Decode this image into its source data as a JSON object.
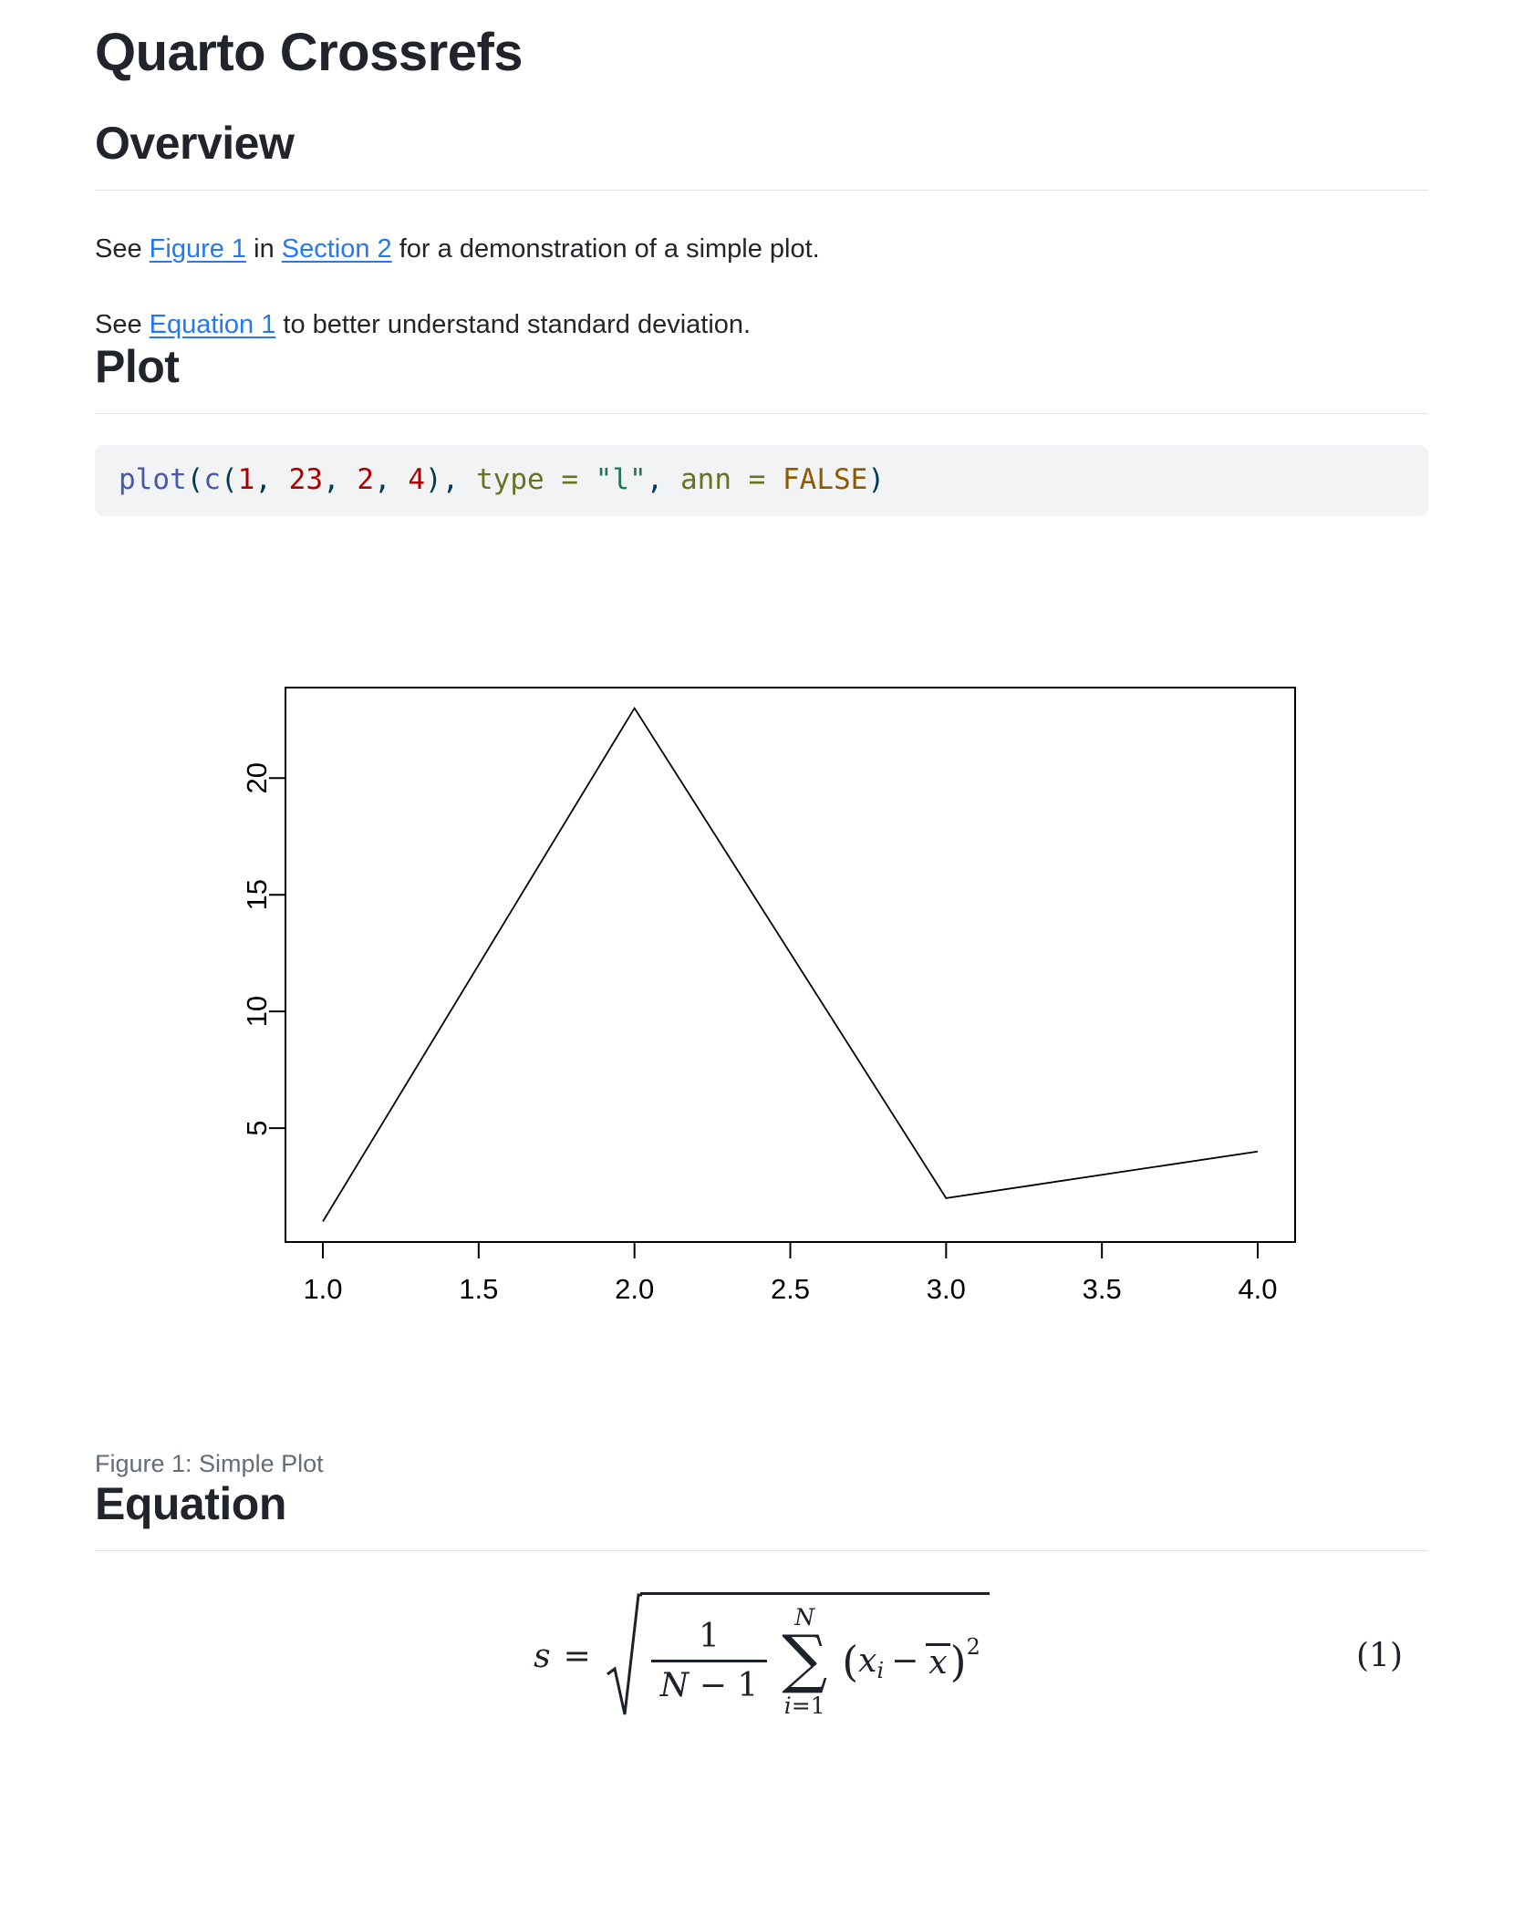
{
  "page": {
    "title": "Quarto Crossrefs"
  },
  "colors": {
    "link": "#2379f0",
    "heading": "#21252b",
    "body_text": "#22262b",
    "rule": "#dee2e6",
    "code_background": "#f1f3f5",
    "caption": "#646c76",
    "plot_line": "#000000",
    "code_function": "#4758AB",
    "code_number": "#AD0000",
    "code_attribute": "#657422",
    "code_string": "#20794D",
    "code_constant": "#8f5902",
    "code_punct": "#003B4F"
  },
  "overview": {
    "heading": "Overview",
    "p1_parts": [
      {
        "text": "See "
      },
      {
        "text": "Figure 1",
        "link": true
      },
      {
        "text": " in "
      },
      {
        "text": "Section 2",
        "link": true
      },
      {
        "text": " for a demonstration of a simple plot."
      }
    ],
    "p2_parts": [
      {
        "text": "See "
      },
      {
        "text": "Equation 1",
        "link": true
      },
      {
        "text": " to better understand standard deviation."
      }
    ]
  },
  "plot_section": {
    "heading": "Plot",
    "code_tokens": [
      {
        "t": "plot",
        "c": "fu"
      },
      {
        "t": "(",
        "c": "pu"
      },
      {
        "t": "c",
        "c": "fu"
      },
      {
        "t": "(",
        "c": "pu"
      },
      {
        "t": "1",
        "c": "dv"
      },
      {
        "t": ", ",
        "c": "pu"
      },
      {
        "t": "23",
        "c": "dv"
      },
      {
        "t": ", ",
        "c": "pu"
      },
      {
        "t": "2",
        "c": "dv"
      },
      {
        "t": ", ",
        "c": "pu"
      },
      {
        "t": "4",
        "c": "dv"
      },
      {
        "t": ")",
        "c": "pu"
      },
      {
        "t": ", ",
        "c": "pu"
      },
      {
        "t": "type",
        "c": "at"
      },
      {
        "t": " ",
        "c": "pl"
      },
      {
        "t": "=",
        "c": "ot"
      },
      {
        "t": " ",
        "c": "pl"
      },
      {
        "t": "\"l\"",
        "c": "st"
      },
      {
        "t": ", ",
        "c": "pu"
      },
      {
        "t": "ann",
        "c": "at"
      },
      {
        "t": " ",
        "c": "pl"
      },
      {
        "t": "=",
        "c": "ot"
      },
      {
        "t": " ",
        "c": "pl"
      },
      {
        "t": "FALSE",
        "c": "cn"
      },
      {
        "t": ")",
        "c": "pu"
      }
    ],
    "figure_caption": "Figure 1: Simple Plot"
  },
  "equation_section": {
    "heading": "Equation",
    "eq": {
      "lhs": "s",
      "rel": "=",
      "num": "1",
      "den_var": "N",
      "den_rest": " − 1",
      "sum_top": "N",
      "sigma": "∑",
      "sum_bot_var": "i",
      "sum_bot_rest": "=1",
      "open": "(",
      "var": "x",
      "sub": "i",
      "minus": "−",
      "barvar": "x",
      "close": ")",
      "sup": "2",
      "label": "(1)"
    }
  },
  "chart_data": {
    "type": "line",
    "x": [
      1,
      2,
      3,
      4
    ],
    "values": [
      1,
      23,
      2,
      4
    ],
    "title": "",
    "xlabel": "",
    "ylabel": "",
    "xlim": [
      0.88,
      4.12
    ],
    "ylim": [
      0.12,
      23.88
    ],
    "x_ticks": [
      1.0,
      1.5,
      2.0,
      2.5,
      3.0,
      3.5,
      4.0
    ],
    "x_tick_labels": [
      "1.0",
      "1.5",
      "2.0",
      "2.5",
      "3.0",
      "3.5",
      "4.0"
    ],
    "y_ticks": [
      5,
      10,
      15,
      20
    ],
    "y_tick_labels": [
      "5",
      "10",
      "15",
      "20"
    ],
    "line_color": "#000000",
    "frame": "box",
    "grid": false,
    "legend": "none"
  }
}
